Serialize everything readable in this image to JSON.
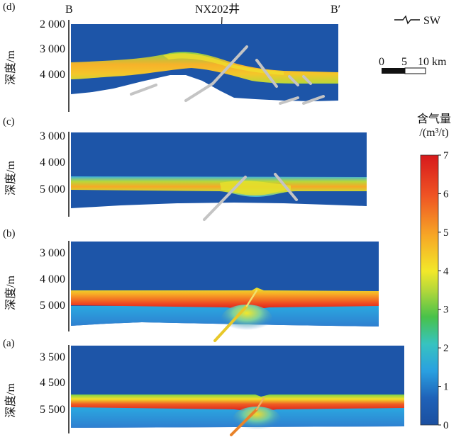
{
  "panels": [
    {
      "id": "d",
      "label": "(d)",
      "ylabel": "深度/m",
      "ticks": [
        "2 000",
        "3 000",
        "4 000"
      ],
      "left_marker": "B",
      "right_marker": "B′",
      "well": "NX202井"
    },
    {
      "id": "c",
      "label": "(c)",
      "ylabel": "深度/m",
      "ticks": [
        "3 000",
        "4 000",
        "5 000"
      ]
    },
    {
      "id": "b",
      "label": "(b)",
      "ylabel": "深度/m",
      "ticks": [
        "3 000",
        "4 000",
        "5 000"
      ]
    },
    {
      "id": "a",
      "label": "(a)",
      "ylabel": "深度/m",
      "ticks": [
        "3 500",
        "4 500",
        "5 500"
      ]
    }
  ],
  "legend": {
    "direction": "SW",
    "scale_ticks": [
      "0",
      "5",
      "10 km"
    ]
  },
  "colorbar": {
    "title_line1": "含气量",
    "title_line2": "/(m³/t)",
    "min": 0,
    "max": 7,
    "ticks": [
      "0",
      "1",
      "2",
      "3",
      "4",
      "5",
      "6",
      "7"
    ],
    "colors": [
      "#1a4f9e",
      "#2a7fd0",
      "#29b3e6",
      "#3ec6a8",
      "#4dc34a",
      "#a6d63a",
      "#f2e82a",
      "#f7a826",
      "#ef5a24",
      "#d7191c"
    ]
  }
}
